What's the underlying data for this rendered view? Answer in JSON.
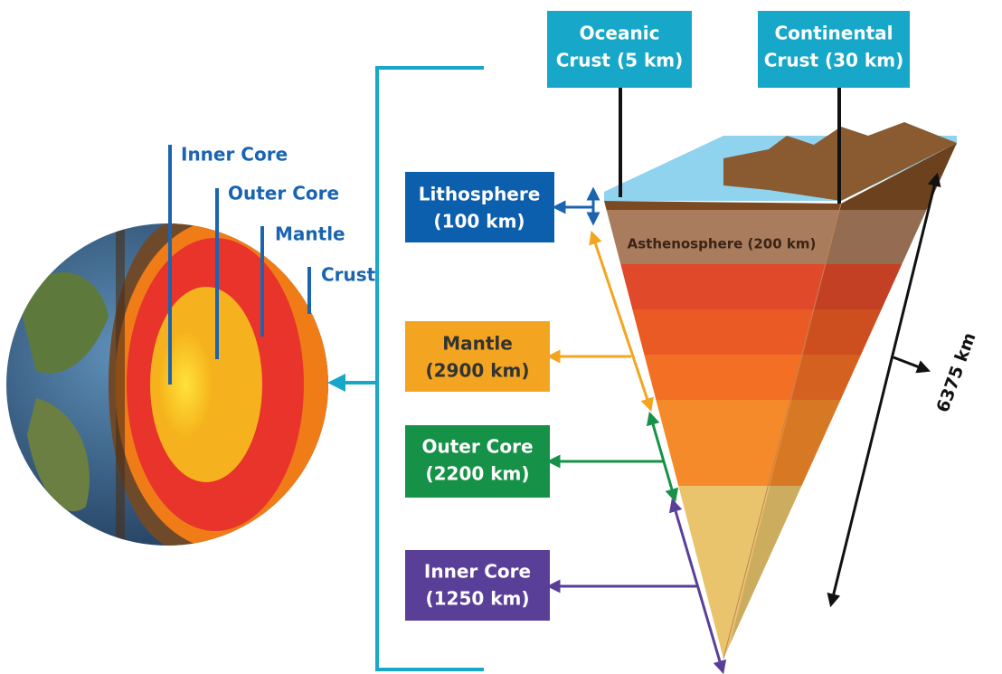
{
  "globe_labels": [
    "Inner Core",
    "Outer Core",
    "Mantle",
    "Crust"
  ],
  "crust_labels": [
    {
      "lines": [
        "Oceanic",
        "Crust (5 km)"
      ]
    },
    {
      "lines": [
        "Continental",
        "Crust (30 km)"
      ]
    }
  ],
  "layers": [
    {
      "name": "Lithosphere",
      "thickness": "(100 km)"
    },
    {
      "name": "Mantle",
      "thickness": "(2900 km)"
    },
    {
      "name": "Outer Core",
      "thickness": "(2200 km)"
    },
    {
      "name": "Inner Core",
      "thickness": "(1250 km)"
    }
  ],
  "asthenosphere": "Asthenosphere (200 km)",
  "radius": "6375 km"
}
